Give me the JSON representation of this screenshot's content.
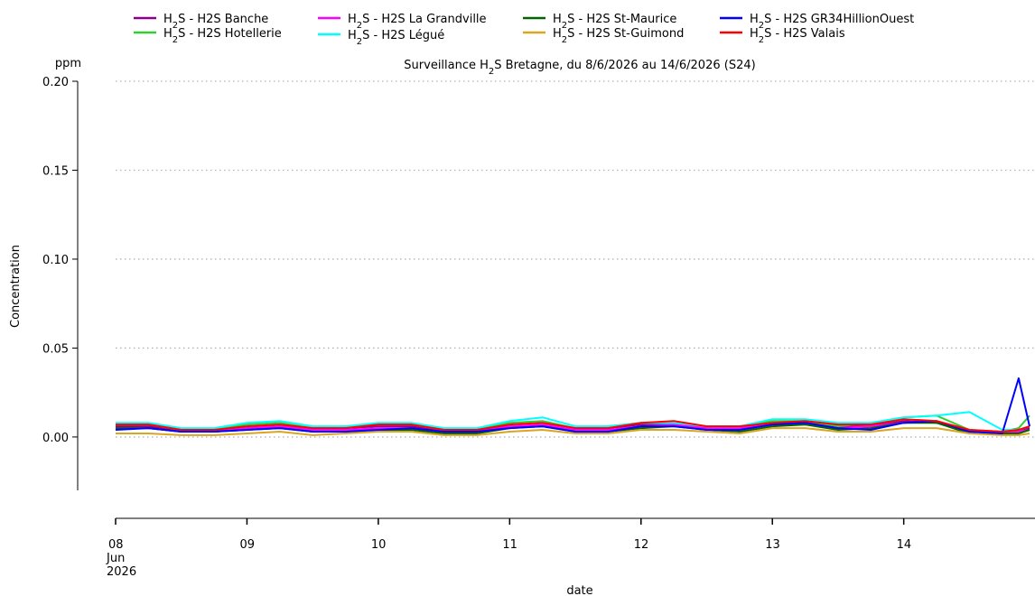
{
  "chart_data": {
    "type": "line",
    "title": "Surveillance H₂S Bretagne, du 8/6/2026 au 14/6/2026 (S24)",
    "ylabel": "Concentration",
    "yunit": "ppm",
    "xlabel": "date",
    "ylim": [
      -0.03,
      0.2
    ],
    "yticks": [
      "0.00",
      "0.05",
      "0.10",
      "0.15",
      "0.20"
    ],
    "ytick_values": [
      0.0,
      0.05,
      0.1,
      0.15,
      0.2
    ],
    "xlim": [
      "2026-06-08 00:00",
      "2026-06-14 23:59"
    ],
    "xticks": [
      {
        "date": "2026-06-08",
        "label": "08",
        "sub": [
          "Jun",
          "2026"
        ]
      },
      {
        "date": "2026-06-09",
        "label": "09"
      },
      {
        "date": "2026-06-10",
        "label": "10"
      },
      {
        "date": "2026-06-11",
        "label": "11"
      },
      {
        "date": "2026-06-12",
        "label": "12"
      },
      {
        "date": "2026-06-13",
        "label": "13"
      },
      {
        "date": "2026-06-14",
        "label": "14"
      }
    ],
    "grid": "horizontal-dotted",
    "legend_position": "top",
    "x": [
      "2026-06-08 00:00",
      "2026-06-08 06:00",
      "2026-06-08 12:00",
      "2026-06-08 18:00",
      "2026-06-09 00:00",
      "2026-06-09 06:00",
      "2026-06-09 12:00",
      "2026-06-09 18:00",
      "2026-06-10 00:00",
      "2026-06-10 06:00",
      "2026-06-10 12:00",
      "2026-06-10 18:00",
      "2026-06-11 00:00",
      "2026-06-11 06:00",
      "2026-06-11 12:00",
      "2026-06-11 18:00",
      "2026-06-12 00:00",
      "2026-06-12 06:00",
      "2026-06-12 12:00",
      "2026-06-12 18:00",
      "2026-06-13 00:00",
      "2026-06-13 06:00",
      "2026-06-13 12:00",
      "2026-06-13 18:00",
      "2026-06-14 00:00",
      "2026-06-14 06:00",
      "2026-06-14 12:00",
      "2026-06-14 18:00",
      "2026-06-14 21:00",
      "2026-06-14 23:00"
    ],
    "series": [
      {
        "name": "H₂S - H2S Banche",
        "color": "#8b008b",
        "values": [
          0.006,
          0.006,
          0.003,
          0.003,
          0.005,
          0.006,
          0.004,
          0.005,
          0.006,
          0.006,
          0.003,
          0.004,
          0.006,
          0.006,
          0.004,
          0.005,
          0.007,
          0.007,
          0.006,
          0.006,
          0.008,
          0.008,
          0.006,
          0.006,
          0.009,
          0.008,
          0.003,
          0.003,
          0.004,
          0.005
        ]
      },
      {
        "name": "H₂S - H2S Hotellerie",
        "color": "#32cd32",
        "values": [
          0.007,
          0.007,
          0.004,
          0.004,
          0.007,
          0.008,
          0.005,
          0.006,
          0.007,
          0.007,
          0.004,
          0.004,
          0.008,
          0.009,
          0.005,
          0.006,
          0.008,
          0.008,
          0.006,
          0.006,
          0.009,
          0.009,
          0.006,
          0.008,
          0.011,
          0.012,
          0.004,
          0.003,
          0.005,
          0.012
        ]
      },
      {
        "name": "H₂S - H2S La Grandville",
        "color": "#ff00ff",
        "values": [
          0.005,
          0.005,
          0.003,
          0.003,
          0.005,
          0.006,
          0.004,
          0.004,
          0.005,
          0.005,
          0.003,
          0.003,
          0.006,
          0.007,
          0.004,
          0.004,
          0.006,
          0.007,
          0.005,
          0.005,
          0.007,
          0.007,
          0.005,
          0.006,
          0.008,
          0.009,
          0.003,
          0.002,
          0.003,
          0.004
        ]
      },
      {
        "name": "H₂S - H2S Légué",
        "color": "#00ffff",
        "values": [
          0.008,
          0.008,
          0.005,
          0.005,
          0.008,
          0.009,
          0.006,
          0.006,
          0.008,
          0.008,
          0.005,
          0.005,
          0.009,
          0.011,
          0.006,
          0.006,
          0.008,
          0.008,
          0.006,
          0.006,
          0.01,
          0.01,
          0.008,
          0.008,
          0.011,
          0.012,
          0.014,
          0.004,
          0.004,
          0.006
        ]
      },
      {
        "name": "H₂S - H2S St-Maurice",
        "color": "#006400",
        "values": [
          0.005,
          0.005,
          0.003,
          0.003,
          0.004,
          0.005,
          0.003,
          0.003,
          0.004,
          0.004,
          0.002,
          0.002,
          0.005,
          0.006,
          0.003,
          0.003,
          0.005,
          0.006,
          0.004,
          0.003,
          0.006,
          0.007,
          0.004,
          0.005,
          0.008,
          0.008,
          0.002,
          0.002,
          0.002,
          0.004
        ]
      },
      {
        "name": "H₂S - H2S St-Guimond",
        "color": "#daa520",
        "values": [
          0.002,
          0.002,
          0.001,
          0.001,
          0.002,
          0.003,
          0.001,
          0.002,
          0.003,
          0.003,
          0.001,
          0.001,
          0.003,
          0.004,
          0.002,
          0.002,
          0.004,
          0.004,
          0.003,
          0.002,
          0.005,
          0.005,
          0.003,
          0.003,
          0.005,
          0.005,
          0.002,
          0.001,
          0.001,
          0.002
        ]
      },
      {
        "name": "H₂S - H2S GR34HillionOuest",
        "color": "#0000ff",
        "values": [
          0.004,
          0.005,
          0.003,
          0.003,
          0.004,
          0.005,
          0.003,
          0.003,
          0.004,
          0.005,
          0.003,
          0.003,
          0.005,
          0.006,
          0.003,
          0.003,
          0.006,
          0.006,
          0.004,
          0.004,
          0.007,
          0.008,
          0.005,
          0.004,
          0.008,
          0.009,
          0.003,
          0.002,
          0.033,
          0.006
        ]
      },
      {
        "name": "H₂S - H2S Valais",
        "color": "#ff0000",
        "values": [
          0.007,
          0.007,
          0.004,
          0.004,
          0.006,
          0.007,
          0.005,
          0.005,
          0.007,
          0.007,
          0.004,
          0.004,
          0.007,
          0.008,
          0.005,
          0.005,
          0.008,
          0.009,
          0.006,
          0.006,
          0.008,
          0.009,
          0.007,
          0.007,
          0.01,
          0.009,
          0.004,
          0.003,
          0.004,
          0.006
        ]
      }
    ]
  }
}
